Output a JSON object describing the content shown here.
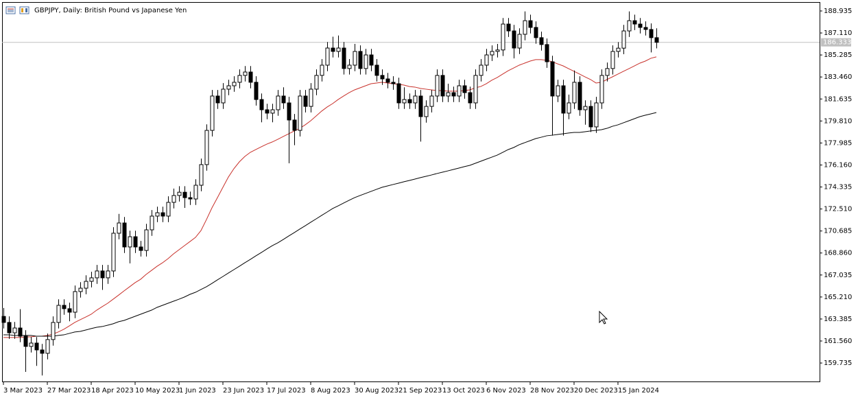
{
  "chart_data": {
    "type": "candlestick",
    "title": "GBPJPY, Daily:  British Pound vs Japanese Yen",
    "categories": [
      "3 Mar 2023",
      null,
      null,
      null,
      null,
      null,
      null,
      null,
      "27 Mar 2023",
      null,
      null,
      null,
      null,
      null,
      null,
      null,
      "18 Apr 2023",
      null,
      null,
      null,
      null,
      null,
      null,
      null,
      "10 May 2023",
      null,
      null,
      null,
      null,
      null,
      null,
      null,
      "1 Jun 2023",
      null,
      null,
      null,
      null,
      null,
      null,
      null,
      "23 Jun 2023",
      null,
      null,
      null,
      null,
      null,
      null,
      null,
      "17 Jul 2023",
      null,
      null,
      null,
      null,
      null,
      null,
      null,
      "8 Aug 2023",
      null,
      null,
      null,
      null,
      null,
      null,
      null,
      "30 Aug 2023",
      null,
      null,
      null,
      null,
      null,
      null,
      null,
      "21 Sep 2023",
      null,
      null,
      null,
      null,
      null,
      null,
      null,
      "13 Oct 2023",
      null,
      null,
      null,
      null,
      null,
      null,
      null,
      "6 Nov 2023",
      null,
      null,
      null,
      null,
      null,
      null,
      null,
      "28 Nov 2023",
      null,
      null,
      null,
      null,
      null,
      null,
      null,
      "20 Dec 2023",
      null,
      null,
      null,
      null,
      null,
      null,
      null,
      "15 Jan 2024",
      null,
      null,
      null,
      null,
      null,
      null,
      null
    ],
    "open": [
      163.6,
      163.1,
      162.24,
      162.64,
      161.96,
      161.11,
      161.39,
      160.82,
      160.54,
      161.68,
      163.1,
      164.52,
      164.24,
      163.95,
      165.66,
      165.94,
      166.51,
      166.8,
      167.37,
      166.8,
      167.37,
      170.5,
      171.35,
      169.36,
      170.21,
      169.36,
      169.07,
      170.78,
      171.92,
      172.2,
      171.92,
      173.06,
      173.63,
      173.9,
      173.45,
      173.34,
      174.48,
      176.19,
      179.03,
      181.88,
      181.31,
      182.45,
      182.73,
      183.02,
      183.59,
      183.87,
      183.02,
      181.59,
      180.74,
      180.46,
      180.74,
      181.88,
      181.31,
      179.89,
      179.03,
      181.88,
      181.02,
      182.45,
      183.59,
      184.44,
      185.86,
      185.58,
      185.86,
      184.16,
      184.44,
      185.58,
      184.16,
      185.29,
      184.44,
      183.59,
      183.3,
      183.02,
      182.9,
      181.31,
      181.59,
      181.31,
      181.88,
      180.17,
      181.02,
      181.88,
      183.59,
      181.88,
      182.16,
      181.88,
      182.73,
      182.16,
      181.31,
      183.59,
      184.44,
      185.29,
      185.58,
      185.7,
      187.85,
      187.28,
      185.86,
      187.0,
      188.13,
      187.57,
      186.72,
      186.15,
      184.72,
      181.88,
      182.73,
      180.46,
      181.31,
      183.02,
      180.74,
      181.02,
      179.32,
      181.31,
      183.59,
      184.16,
      185.58,
      185.85,
      187.28,
      188.13,
      187.85,
      187.57,
      187.4,
      186.72
    ],
    "high": [
      164.3,
      163.6,
      163.14,
      164.2,
      162.46,
      161.89,
      161.89,
      161.32,
      162.18,
      163.6,
      165.02,
      165.02,
      164.74,
      166.16,
      166.44,
      167.01,
      167.3,
      167.87,
      167.87,
      167.87,
      171.0,
      172.1,
      171.85,
      170.71,
      170.71,
      169.86,
      171.28,
      172.42,
      172.7,
      172.7,
      173.56,
      174.2,
      174.4,
      174.4,
      173.95,
      174.98,
      176.69,
      179.53,
      182.38,
      182.38,
      182.95,
      183.23,
      183.52,
      184.09,
      184.37,
      184.37,
      183.52,
      182.09,
      181.24,
      181.24,
      182.38,
      182.6,
      181.81,
      180.39,
      182.38,
      182.38,
      182.95,
      184.09,
      184.94,
      186.36,
      186.8,
      186.9,
      186.36,
      184.94,
      186.2,
      186.08,
      185.79,
      185.79,
      184.94,
      184.09,
      183.8,
      183.52,
      183.4,
      182.6,
      182.09,
      182.38,
      182.38,
      181.52,
      182.38,
      184.09,
      184.09,
      182.9,
      182.66,
      183.23,
      183.23,
      182.66,
      184.09,
      184.94,
      185.79,
      186.08,
      186.2,
      188.35,
      188.35,
      187.78,
      187.5,
      188.9,
      188.63,
      188.07,
      187.22,
      186.65,
      185.22,
      183.23,
      183.23,
      182.0,
      184.0,
      183.52,
      181.52,
      181.52,
      181.81,
      184.09,
      184.66,
      186.08,
      186.35,
      187.78,
      188.9,
      188.63,
      188.35,
      188.07,
      187.9,
      187.5
    ],
    "low": [
      162.6,
      161.74,
      161.74,
      161.46,
      159.0,
      160.61,
      159.5,
      158.7,
      160.04,
      161.18,
      162.6,
      163.74,
      163.2,
      163.45,
      165.16,
      165.44,
      166.01,
      166.3,
      165.8,
      166.3,
      166.87,
      170.0,
      168.86,
      168.0,
      168.86,
      168.57,
      168.57,
      170.28,
      171.42,
      171.42,
      171.42,
      172.56,
      173.13,
      172.6,
      172.84,
      172.84,
      173.98,
      175.69,
      178.53,
      180.81,
      180.81,
      181.95,
      182.23,
      182.52,
      183.09,
      182.52,
      181.09,
      179.7,
      179.96,
      179.7,
      180.24,
      180.81,
      176.3,
      177.8,
      178.53,
      180.52,
      180.52,
      181.95,
      183.09,
      183.94,
      185.08,
      185.08,
      183.66,
      183.66,
      183.94,
      183.66,
      183.66,
      183.94,
      183.09,
      182.8,
      182.52,
      182.4,
      180.81,
      180.81,
      180.81,
      180.81,
      178.1,
      179.67,
      180.52,
      181.38,
      181.38,
      181.38,
      181.38,
      181.38,
      181.66,
      180.81,
      180.81,
      183.09,
      183.94,
      184.79,
      185.08,
      185.2,
      186.78,
      185.0,
      185.36,
      186.5,
      187.07,
      186.22,
      185.65,
      184.22,
      178.6,
      181.38,
      178.6,
      179.96,
      180.81,
      180.24,
      179.5,
      178.9,
      178.82,
      180.81,
      183.09,
      183.66,
      185.08,
      185.35,
      186.78,
      187.35,
      187.07,
      186.9,
      185.5,
      185.83
    ],
    "close": [
      163.1,
      162.24,
      162.64,
      161.96,
      161.11,
      161.39,
      160.82,
      160.54,
      161.68,
      163.1,
      164.52,
      164.24,
      163.95,
      165.66,
      165.94,
      166.51,
      166.8,
      167.37,
      166.8,
      167.37,
      170.5,
      171.35,
      169.36,
      170.21,
      169.36,
      169.07,
      170.78,
      171.92,
      172.2,
      171.92,
      173.06,
      173.63,
      173.9,
      173.45,
      173.34,
      174.48,
      176.19,
      179.03,
      181.88,
      181.31,
      182.45,
      182.73,
      183.02,
      183.59,
      183.87,
      183.02,
      181.59,
      180.74,
      180.46,
      180.74,
      181.88,
      181.31,
      179.89,
      179.03,
      181.88,
      181.02,
      182.45,
      183.59,
      184.44,
      185.86,
      185.58,
      185.86,
      184.16,
      184.44,
      185.58,
      184.16,
      185.29,
      184.44,
      183.59,
      183.3,
      183.02,
      182.9,
      181.31,
      181.59,
      181.31,
      181.88,
      180.17,
      181.02,
      181.88,
      183.59,
      181.88,
      182.16,
      181.88,
      182.73,
      182.16,
      181.31,
      183.59,
      184.44,
      185.29,
      185.58,
      185.7,
      187.85,
      187.28,
      185.86,
      187.0,
      188.13,
      187.57,
      186.72,
      186.15,
      184.72,
      181.88,
      182.73,
      180.46,
      181.31,
      183.02,
      180.74,
      181.02,
      179.32,
      181.31,
      183.59,
      184.16,
      185.58,
      185.85,
      187.28,
      188.13,
      187.85,
      187.57,
      187.4,
      186.72,
      186.333
    ],
    "up_color": "#ffffff",
    "down_color": "#000000",
    "overlays": [
      {
        "color": "#c8302a",
        "values": [
          161.85,
          161.85,
          161.85,
          161.85,
          161.9,
          161.9,
          161.96,
          161.96,
          162.02,
          162.13,
          162.31,
          162.53,
          162.81,
          163.1,
          163.33,
          163.55,
          163.78,
          164.12,
          164.41,
          164.69,
          165.03,
          165.37,
          165.72,
          166.06,
          166.4,
          166.68,
          167.08,
          167.42,
          167.76,
          168.05,
          168.39,
          168.79,
          169.13,
          169.47,
          169.81,
          170.15,
          170.72,
          171.63,
          172.6,
          173.45,
          174.31,
          175.16,
          175.85,
          176.42,
          176.87,
          177.21,
          177.44,
          177.67,
          177.89,
          178.07,
          178.29,
          178.52,
          178.75,
          178.98,
          179.2,
          179.49,
          179.83,
          180.23,
          180.63,
          180.97,
          181.25,
          181.59,
          181.88,
          182.16,
          182.39,
          182.56,
          182.73,
          182.9,
          182.96,
          183.02,
          182.96,
          182.9,
          182.85,
          182.79,
          182.67,
          182.62,
          182.51,
          182.45,
          182.39,
          182.33,
          182.33,
          182.28,
          182.28,
          182.28,
          182.33,
          182.39,
          182.56,
          182.67,
          182.9,
          183.19,
          183.42,
          183.7,
          183.98,
          184.21,
          184.44,
          184.61,
          184.78,
          184.9,
          184.9,
          184.84,
          184.73,
          184.55,
          184.38,
          184.15,
          183.93,
          183.7,
          183.47,
          183.25,
          182.96,
          183.02,
          183.25,
          183.47,
          183.7,
          183.93,
          184.15,
          184.38,
          184.61,
          184.78,
          185.01,
          185.13
        ]
      },
      {
        "color": "#000000",
        "values": [
          162.07,
          162.07,
          162.02,
          162.02,
          162.02,
          162.02,
          161.96,
          161.96,
          161.96,
          161.96,
          162.02,
          162.07,
          162.19,
          162.31,
          162.36,
          162.47,
          162.59,
          162.7,
          162.76,
          162.87,
          162.99,
          163.16,
          163.27,
          163.44,
          163.61,
          163.78,
          163.95,
          164.12,
          164.35,
          164.52,
          164.69,
          164.86,
          165.03,
          165.21,
          165.43,
          165.6,
          165.83,
          166.06,
          166.34,
          166.63,
          166.91,
          167.2,
          167.48,
          167.76,
          168.05,
          168.33,
          168.62,
          168.9,
          169.19,
          169.47,
          169.7,
          169.98,
          170.27,
          170.55,
          170.84,
          171.12,
          171.41,
          171.69,
          171.98,
          172.26,
          172.55,
          172.77,
          173.0,
          173.23,
          173.45,
          173.63,
          173.8,
          173.97,
          174.14,
          174.31,
          174.42,
          174.54,
          174.65,
          174.77,
          174.88,
          174.99,
          175.11,
          175.22,
          175.33,
          175.45,
          175.56,
          175.67,
          175.79,
          175.9,
          176.02,
          176.13,
          176.3,
          176.47,
          176.64,
          176.81,
          176.98,
          177.21,
          177.44,
          177.61,
          177.84,
          178.01,
          178.18,
          178.35,
          178.46,
          178.58,
          178.63,
          178.69,
          178.75,
          178.81,
          178.86,
          178.86,
          178.92,
          178.98,
          179.03,
          179.09,
          179.2,
          179.37,
          179.49,
          179.66,
          179.83,
          180.0,
          180.17,
          180.29,
          180.4,
          180.51
        ]
      }
    ],
    "price_line": {
      "value": 186.333,
      "color": "#c0c0c0"
    },
    "ylim": [
      158.26,
      189.56
    ],
    "yticks": [
      188.935,
      {
        "value": 187.11,
        "label": "187.110"
      },
      185.285,
      {
        "value": 183.46,
        "label": "183.460"
      },
      181.635,
      {
        "value": 179.81,
        "label": "179.810"
      },
      177.985,
      {
        "value": 176.16,
        "label": "176.160"
      },
      174.335,
      {
        "value": 172.51,
        "label": "172.510"
      },
      170.685,
      {
        "value": 168.86,
        "label": "168.860"
      },
      167.035,
      {
        "value": 165.21,
        "label": "165.210"
      },
      163.385,
      {
        "value": 161.56,
        "label": "161.560"
      },
      159.735
    ],
    "grid": false
  }
}
